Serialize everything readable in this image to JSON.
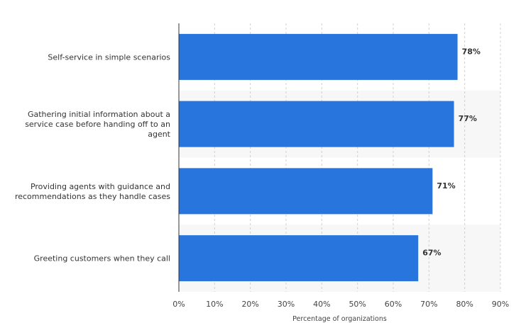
{
  "chart_data": {
    "type": "bar",
    "orientation": "horizontal",
    "categories": [
      "Self-service in simple scenarios",
      "Gathering initial information about a service case before handing off to an agent",
      "Providing agents with guidance and recommendations as they handle cases",
      "Greeting customers when they call"
    ],
    "category_label_lines": [
      [
        "Self-service in simple scenarios"
      ],
      [
        "Gathering initial information about a",
        "service case before handing off to an",
        "agent"
      ],
      [
        "Providing agents with guidance and",
        "recommendations as they handle cases"
      ],
      [
        "Greeting customers when they call"
      ]
    ],
    "values": [
      78,
      77,
      71,
      67
    ],
    "value_labels": [
      "78%",
      "77%",
      "71%",
      "67%"
    ],
    "xlabel": "Percentage of organizations",
    "ylabel": "",
    "xlim": [
      0,
      90
    ],
    "xticks": [
      0,
      10,
      20,
      30,
      40,
      50,
      60,
      70,
      80,
      90
    ],
    "xtick_labels": [
      "0%",
      "10%",
      "20%",
      "30%",
      "40%",
      "50%",
      "60%",
      "70%",
      "80%",
      "90%"
    ],
    "grid": "vertical-dashed",
    "legend": "none",
    "colors": {
      "bar": "#2876dd",
      "grid": "#d0d0d0",
      "band": "#f7f7f7",
      "axis": "#333333"
    }
  }
}
